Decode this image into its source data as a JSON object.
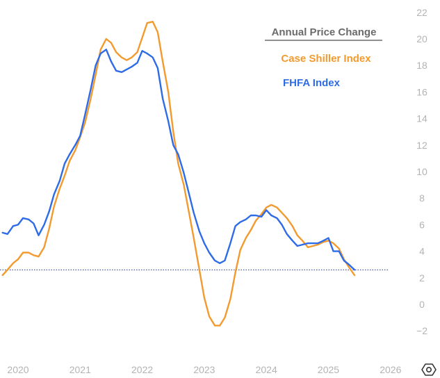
{
  "chart_data": {
    "type": "line",
    "title": "Annual Price Change",
    "x_unit": "year",
    "xlim": [
      2019.75,
      2026.2
    ],
    "ylim": [
      -3.5,
      22.5
    ],
    "y_ticks": [
      -2,
      0,
      2,
      4,
      6,
      8,
      10,
      12,
      14,
      16,
      18,
      20,
      22
    ],
    "x_ticks": [
      2020,
      2021,
      2022,
      2023,
      2024,
      2025,
      2026
    ],
    "y_tick_labels": [
      "−2",
      "0",
      "2",
      "4",
      "6",
      "8",
      "10",
      "12",
      "14",
      "16",
      "18",
      "20",
      "22"
    ],
    "x_tick_labels": [
      "2020",
      "2021",
      "2022",
      "2023",
      "2024",
      "2025",
      "2026"
    ],
    "grid": false,
    "legend_position": "top-right",
    "reference_line": {
      "y": 2.6,
      "style": "dotted"
    },
    "series": [
      {
        "name": "Case Shiller Index",
        "color": "#f39a2e",
        "points": [
          [
            2019.75,
            2.2
          ],
          [
            2019.83,
            2.6
          ],
          [
            2019.92,
            3.1
          ],
          [
            2020.0,
            3.4
          ],
          [
            2020.08,
            3.9
          ],
          [
            2020.17,
            3.9
          ],
          [
            2020.25,
            3.7
          ],
          [
            2020.33,
            3.6
          ],
          [
            2020.42,
            4.3
          ],
          [
            2020.5,
            5.7
          ],
          [
            2020.58,
            7.4
          ],
          [
            2020.67,
            8.7
          ],
          [
            2020.75,
            9.7
          ],
          [
            2020.83,
            10.8
          ],
          [
            2020.92,
            11.6
          ],
          [
            2021.0,
            12.6
          ],
          [
            2021.08,
            13.7
          ],
          [
            2021.17,
            15.5
          ],
          [
            2021.25,
            17.3
          ],
          [
            2021.33,
            19.2
          ],
          [
            2021.42,
            20.0
          ],
          [
            2021.5,
            19.7
          ],
          [
            2021.58,
            19.0
          ],
          [
            2021.67,
            18.6
          ],
          [
            2021.75,
            18.4
          ],
          [
            2021.83,
            18.6
          ],
          [
            2021.92,
            19.0
          ],
          [
            2022.0,
            20.1
          ],
          [
            2022.08,
            21.2
          ],
          [
            2022.17,
            21.3
          ],
          [
            2022.25,
            20.5
          ],
          [
            2022.33,
            18.3
          ],
          [
            2022.42,
            16.0
          ],
          [
            2022.5,
            13.0
          ],
          [
            2022.58,
            10.6
          ],
          [
            2022.67,
            9.0
          ],
          [
            2022.75,
            7.0
          ],
          [
            2022.83,
            5.0
          ],
          [
            2022.92,
            2.6
          ],
          [
            2023.0,
            0.5
          ],
          [
            2023.08,
            -0.9
          ],
          [
            2023.17,
            -1.6
          ],
          [
            2023.25,
            -1.6
          ],
          [
            2023.33,
            -1.0
          ],
          [
            2023.42,
            0.4
          ],
          [
            2023.5,
            2.4
          ],
          [
            2023.58,
            4.1
          ],
          [
            2023.67,
            5.0
          ],
          [
            2023.75,
            5.6
          ],
          [
            2023.83,
            6.3
          ],
          [
            2023.92,
            6.8
          ],
          [
            2024.0,
            7.3
          ],
          [
            2024.08,
            7.5
          ],
          [
            2024.17,
            7.3
          ],
          [
            2024.25,
            6.9
          ],
          [
            2024.33,
            6.5
          ],
          [
            2024.42,
            5.9
          ],
          [
            2024.5,
            5.2
          ],
          [
            2024.58,
            4.8
          ],
          [
            2024.67,
            4.3
          ],
          [
            2024.75,
            4.4
          ],
          [
            2024.83,
            4.5
          ],
          [
            2024.92,
            4.7
          ],
          [
            2025.0,
            4.8
          ],
          [
            2025.08,
            4.6
          ],
          [
            2025.17,
            4.2
          ],
          [
            2025.25,
            3.4
          ],
          [
            2025.33,
            2.8
          ],
          [
            2025.42,
            2.2
          ]
        ]
      },
      {
        "name": "FHFA Index",
        "color": "#2e6be6",
        "points": [
          [
            2019.75,
            5.4
          ],
          [
            2019.83,
            5.3
          ],
          [
            2019.92,
            5.9
          ],
          [
            2020.0,
            6.0
          ],
          [
            2020.08,
            6.5
          ],
          [
            2020.17,
            6.4
          ],
          [
            2020.25,
            6.1
          ],
          [
            2020.33,
            5.2
          ],
          [
            2020.42,
            6.0
          ],
          [
            2020.5,
            7.0
          ],
          [
            2020.58,
            8.3
          ],
          [
            2020.67,
            9.3
          ],
          [
            2020.75,
            10.6
          ],
          [
            2020.83,
            11.3
          ],
          [
            2020.92,
            12.0
          ],
          [
            2021.0,
            12.7
          ],
          [
            2021.08,
            14.3
          ],
          [
            2021.17,
            16.2
          ],
          [
            2021.25,
            18.0
          ],
          [
            2021.33,
            18.9
          ],
          [
            2021.42,
            19.2
          ],
          [
            2021.5,
            18.3
          ],
          [
            2021.58,
            17.6
          ],
          [
            2021.67,
            17.5
          ],
          [
            2021.75,
            17.7
          ],
          [
            2021.83,
            17.9
          ],
          [
            2021.92,
            18.2
          ],
          [
            2022.0,
            19.1
          ],
          [
            2022.08,
            18.9
          ],
          [
            2022.17,
            18.6
          ],
          [
            2022.25,
            17.8
          ],
          [
            2022.33,
            15.5
          ],
          [
            2022.42,
            13.8
          ],
          [
            2022.5,
            12.0
          ],
          [
            2022.58,
            11.3
          ],
          [
            2022.67,
            9.9
          ],
          [
            2022.75,
            8.4
          ],
          [
            2022.83,
            6.9
          ],
          [
            2022.92,
            5.5
          ],
          [
            2023.0,
            4.6
          ],
          [
            2023.08,
            3.9
          ],
          [
            2023.17,
            3.3
          ],
          [
            2023.25,
            3.1
          ],
          [
            2023.33,
            3.3
          ],
          [
            2023.42,
            4.6
          ],
          [
            2023.5,
            5.9
          ],
          [
            2023.58,
            6.2
          ],
          [
            2023.67,
            6.4
          ],
          [
            2023.75,
            6.7
          ],
          [
            2023.83,
            6.7
          ],
          [
            2023.92,
            6.6
          ],
          [
            2024.0,
            7.1
          ],
          [
            2024.08,
            6.7
          ],
          [
            2024.17,
            6.5
          ],
          [
            2024.25,
            6.0
          ],
          [
            2024.33,
            5.3
          ],
          [
            2024.42,
            4.8
          ],
          [
            2024.5,
            4.4
          ],
          [
            2024.58,
            4.5
          ],
          [
            2024.67,
            4.6
          ],
          [
            2024.75,
            4.6
          ],
          [
            2024.83,
            4.6
          ],
          [
            2024.92,
            4.8
          ],
          [
            2025.0,
            5.0
          ],
          [
            2025.08,
            4.0
          ],
          [
            2025.17,
            4.0
          ],
          [
            2025.25,
            3.3
          ],
          [
            2025.33,
            3.0
          ],
          [
            2025.42,
            2.6
          ]
        ]
      }
    ]
  },
  "icons": {
    "settings": "settings-icon"
  }
}
